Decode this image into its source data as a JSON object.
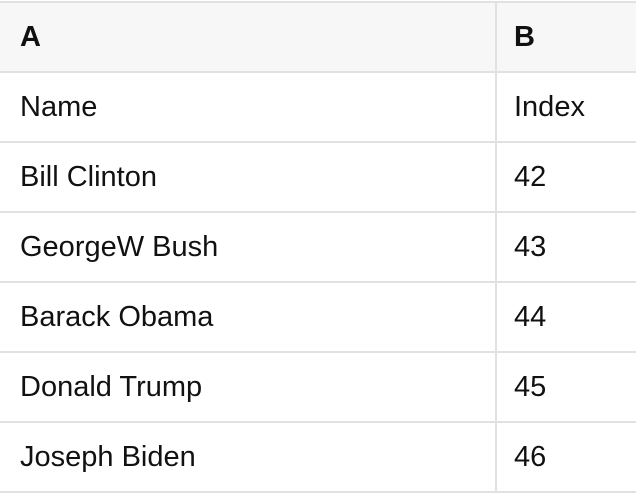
{
  "table": {
    "kind": "spreadsheet",
    "columns": [
      {
        "label": "A"
      },
      {
        "label": "B"
      }
    ],
    "rows": [
      {
        "cells": [
          "Name",
          "Index"
        ]
      },
      {
        "cells": [
          "Bill Clinton",
          "42"
        ]
      },
      {
        "cells": [
          "GeorgeW Bush",
          "43"
        ]
      },
      {
        "cells": [
          "Barack Obama",
          "44"
        ]
      },
      {
        "cells": [
          "Donald Trump",
          "45"
        ]
      },
      {
        "cells": [
          "Joseph Biden",
          "46"
        ]
      }
    ],
    "colors": {
      "header_bg": "#f7f7f7",
      "border": "#e1e1e1",
      "text": "#111111",
      "cell_bg": "#ffffff"
    }
  }
}
